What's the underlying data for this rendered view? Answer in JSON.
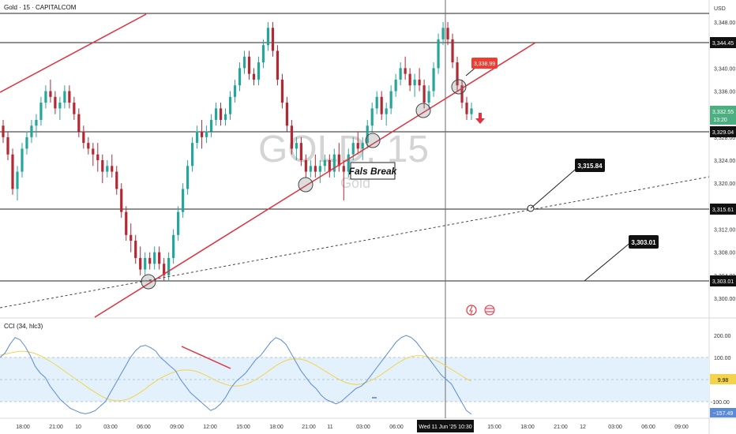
{
  "header": {
    "symbol_title": "Gold · 15 · CAPITALCOM",
    "currency": "USD"
  },
  "watermark": {
    "main": "GOLD, 15",
    "sub": "Gold"
  },
  "annotations": {
    "fals_break": "Fals Break",
    "tag_3338": "3,338.99",
    "tag_3315": "3,315.84",
    "tag_3303": "3,303.01"
  },
  "colors": {
    "up": "#26a69a",
    "down": "#b22833",
    "trend": "#e0323f",
    "price_badge": "#4caf82",
    "cci_line": "#5b8bd8",
    "cci_ma": "#f2d34a",
    "cci_band": "#e3f1fc",
    "crosshair": "#6b6b6b"
  },
  "price_axis": {
    "ticks": [
      "3,348.00",
      "3,344.00",
      "3,340.00",
      "3,336.00",
      "3,332.00",
      "3,328.00",
      "3,324.00",
      "3,320.00",
      "3,316.00",
      "3,312.00",
      "3,308.00",
      "3,304.00",
      "3,300.00"
    ],
    "label_344": "3,344.45",
    "label_329": "3,329.04",
    "label_315": "3,315.61",
    "label_303": "3,303.01",
    "last_price": "3,332.55",
    "countdown": "13:20"
  },
  "cci": {
    "title": "CCI (34, hlc3)",
    "ticks": [
      "200.00",
      "100.00",
      "-100.00"
    ],
    "value": "9.98",
    "value2": "−157.49"
  },
  "time_axis": {
    "labels": [
      "18:00",
      "21:00",
      "10",
      "03:00",
      "06:00",
      "09:00",
      "12:00",
      "15:00",
      "18:00",
      "21:00",
      "11",
      "03:00",
      "06:00",
      "15:00",
      "18:00",
      "21:00",
      "12",
      "03:00",
      "06:00",
      "09:00"
    ],
    "crosshair_label": "Wed 11 Jun '25   10:30"
  },
  "chart_data": {
    "type": "candlestick",
    "title": "Gold · 15 · CAPITALCOM",
    "ylim": [
      3298,
      3351
    ],
    "horizontal_levels": [
      3344.45,
      3329.04,
      3315.61,
      3303.01
    ],
    "candles": [
      [
        3330,
        3331,
        3327,
        3328
      ],
      [
        3328,
        3329,
        3324,
        3325
      ],
      [
        3325,
        3326,
        3318,
        3319
      ],
      [
        3319,
        3323,
        3317,
        3322
      ],
      [
        3322,
        3327,
        3321,
        3326
      ],
      [
        3326,
        3329,
        3325,
        3328
      ],
      [
        3328,
        3331,
        3327,
        3330
      ],
      [
        3330,
        3332,
        3328,
        3331
      ],
      [
        3331,
        3335,
        3330,
        3334
      ],
      [
        3334,
        3337,
        3333,
        3336
      ],
      [
        3336,
        3338,
        3334,
        3335
      ],
      [
        3335,
        3336,
        3332,
        3333
      ],
      [
        3333,
        3335,
        3331,
        3334
      ],
      [
        3334,
        3337,
        3333,
        3336
      ],
      [
        3336,
        3337,
        3333,
        3334
      ],
      [
        3334,
        3335,
        3331,
        3332
      ],
      [
        3332,
        3333,
        3328,
        3329
      ],
      [
        3329,
        3330,
        3326,
        3327
      ],
      [
        3327,
        3328,
        3325,
        3326
      ],
      [
        3326,
        3327,
        3323,
        3325
      ],
      [
        3325,
        3327,
        3322,
        3324
      ],
      [
        3324,
        3325,
        3320,
        3322
      ],
      [
        3322,
        3324,
        3321,
        3323
      ],
      [
        3323,
        3325,
        3321,
        3322
      ],
      [
        3322,
        3323,
        3318,
        3319
      ],
      [
        3319,
        3320,
        3314,
        3315
      ],
      [
        3315,
        3316,
        3310,
        3311
      ],
      [
        3311,
        3313,
        3308,
        3310
      ],
      [
        3310,
        3311,
        3306,
        3307
      ],
      [
        3307,
        3309,
        3304,
        3305
      ],
      [
        3305,
        3308,
        3304,
        3307
      ],
      [
        3307,
        3308,
        3305,
        3306
      ],
      [
        3306,
        3309,
        3305,
        3308
      ],
      [
        3308,
        3309,
        3305,
        3306
      ],
      [
        3306,
        3307,
        3303,
        3304
      ],
      [
        3304,
        3308,
        3303,
        3307
      ],
      [
        3307,
        3312,
        3306,
        3311
      ],
      [
        3311,
        3316,
        3310,
        3315
      ],
      [
        3315,
        3320,
        3314,
        3319
      ],
      [
        3319,
        3324,
        3318,
        3323
      ],
      [
        3323,
        3328,
        3322,
        3327
      ],
      [
        3327,
        3330,
        3326,
        3329
      ],
      [
        3329,
        3331,
        3326,
        3328
      ],
      [
        3328,
        3330,
        3327,
        3329
      ],
      [
        3329,
        3332,
        3328,
        3331
      ],
      [
        3331,
        3334,
        3330,
        3333
      ],
      [
        3333,
        3334,
        3330,
        3331
      ],
      [
        3331,
        3333,
        3330,
        3332
      ],
      [
        3332,
        3336,
        3331,
        3335
      ],
      [
        3335,
        3338,
        3334,
        3337
      ],
      [
        3337,
        3341,
        3336,
        3340
      ],
      [
        3340,
        3343,
        3339,
        3342
      ],
      [
        3342,
        3343,
        3338,
        3339
      ],
      [
        3339,
        3340,
        3337,
        3338
      ],
      [
        3338,
        3342,
        3337,
        3341
      ],
      [
        3341,
        3345,
        3340,
        3344
      ],
      [
        3344,
        3348,
        3343,
        3347
      ],
      [
        3347,
        3348,
        3342,
        3343
      ],
      [
        3343,
        3344,
        3337,
        3338
      ],
      [
        3338,
        3339,
        3333,
        3334
      ],
      [
        3334,
        3335,
        3329,
        3330
      ],
      [
        3330,
        3331,
        3325,
        3326
      ],
      [
        3326,
        3328,
        3324,
        3327
      ],
      [
        3327,
        3328,
        3323,
        3324
      ],
      [
        3324,
        3325,
        3321,
        3322
      ],
      [
        3322,
        3324,
        3321,
        3323
      ],
      [
        3323,
        3325,
        3321,
        3322
      ],
      [
        3322,
        3324,
        3320,
        3323
      ],
      [
        3323,
        3325,
        3322,
        3324
      ],
      [
        3324,
        3325,
        3321,
        3322
      ],
      [
        3322,
        3326,
        3321,
        3325
      ],
      [
        3325,
        3327,
        3322,
        3323
      ],
      [
        3323,
        3324,
        3317,
        3322
      ],
      [
        3322,
        3326,
        3321,
        3325
      ],
      [
        3325,
        3328,
        3324,
        3327
      ],
      [
        3327,
        3329,
        3325,
        3326
      ],
      [
        3326,
        3328,
        3324,
        3327
      ],
      [
        3327,
        3331,
        3326,
        3330
      ],
      [
        3330,
        3334,
        3329,
        3333
      ],
      [
        3333,
        3336,
        3332,
        3335
      ],
      [
        3335,
        3336,
        3331,
        3332
      ],
      [
        3332,
        3334,
        3330,
        3333
      ],
      [
        3333,
        3337,
        3332,
        3336
      ],
      [
        3336,
        3339,
        3335,
        3338
      ],
      [
        3338,
        3341,
        3337,
        3340
      ],
      [
        3340,
        3342,
        3338,
        3339
      ],
      [
        3339,
        3340,
        3336,
        3337
      ],
      [
        3337,
        3339,
        3335,
        3338
      ],
      [
        3338,
        3340,
        3336,
        3337
      ],
      [
        3337,
        3338,
        3333,
        3334
      ],
      [
        3334,
        3337,
        3333,
        3336
      ],
      [
        3336,
        3341,
        3335,
        3340
      ],
      [
        3340,
        3346,
        3339,
        3345
      ],
      [
        3345,
        3348,
        3344,
        3347
      ],
      [
        3347,
        3348,
        3344,
        3345
      ],
      [
        3345,
        3346,
        3340,
        3341
      ],
      [
        3341,
        3342,
        3336,
        3337
      ],
      [
        3337,
        3338,
        3333,
        3334
      ],
      [
        3334,
        3335,
        3331,
        3332
      ],
      [
        3332,
        3334,
        3331,
        3333
      ]
    ],
    "cci_series": [
      100,
      120,
      160,
      190,
      180,
      150,
      110,
      60,
      30,
      10,
      -30,
      -60,
      -90,
      -110,
      -130,
      -140,
      -150,
      -155,
      -150,
      -140,
      -120,
      -100,
      -60,
      -20,
      20,
      60,
      100,
      130,
      150,
      155,
      145,
      130,
      100,
      80,
      60,
      40,
      0,
      -30,
      -60,
      -80,
      -100,
      -120,
      -140,
      -130,
      -110,
      -80,
      -40,
      -10,
      10,
      30,
      60,
      90,
      110,
      140,
      170,
      190,
      180,
      160,
      120,
      80,
      40,
      10,
      -20,
      -40,
      -70,
      -90,
      -100,
      -110,
      -100,
      -80,
      -60,
      -40,
      -30,
      -10,
      20,
      50,
      80,
      110,
      140,
      170,
      190,
      200,
      190,
      170,
      140,
      110,
      80,
      50,
      20,
      0,
      -20,
      -60,
      -100,
      -140,
      -157
    ],
    "cci_ma": [
      110,
      115,
      120,
      125,
      128,
      128,
      124,
      118,
      108,
      96,
      82,
      68,
      52,
      36,
      20,
      4,
      -12,
      -28,
      -44,
      -58,
      -72,
      -84,
      -92,
      -96,
      -96,
      -92,
      -84,
      -72,
      -58,
      -42,
      -24,
      -8,
      6,
      18,
      28,
      36,
      42,
      44,
      42,
      38,
      30,
      20,
      8,
      -4,
      -14,
      -22,
      -28,
      -30,
      -28,
      -22,
      -12,
      0,
      14,
      30,
      46,
      62,
      76,
      86,
      92,
      94,
      92,
      86,
      76,
      64,
      50,
      36,
      22,
      8,
      -4,
      -14,
      -20,
      -22,
      -20,
      -14,
      -4,
      8,
      22,
      38,
      54,
      70,
      84,
      96,
      104,
      108,
      108,
      104,
      96,
      86,
      74,
      60,
      46,
      32,
      18,
      4,
      -8
    ]
  }
}
